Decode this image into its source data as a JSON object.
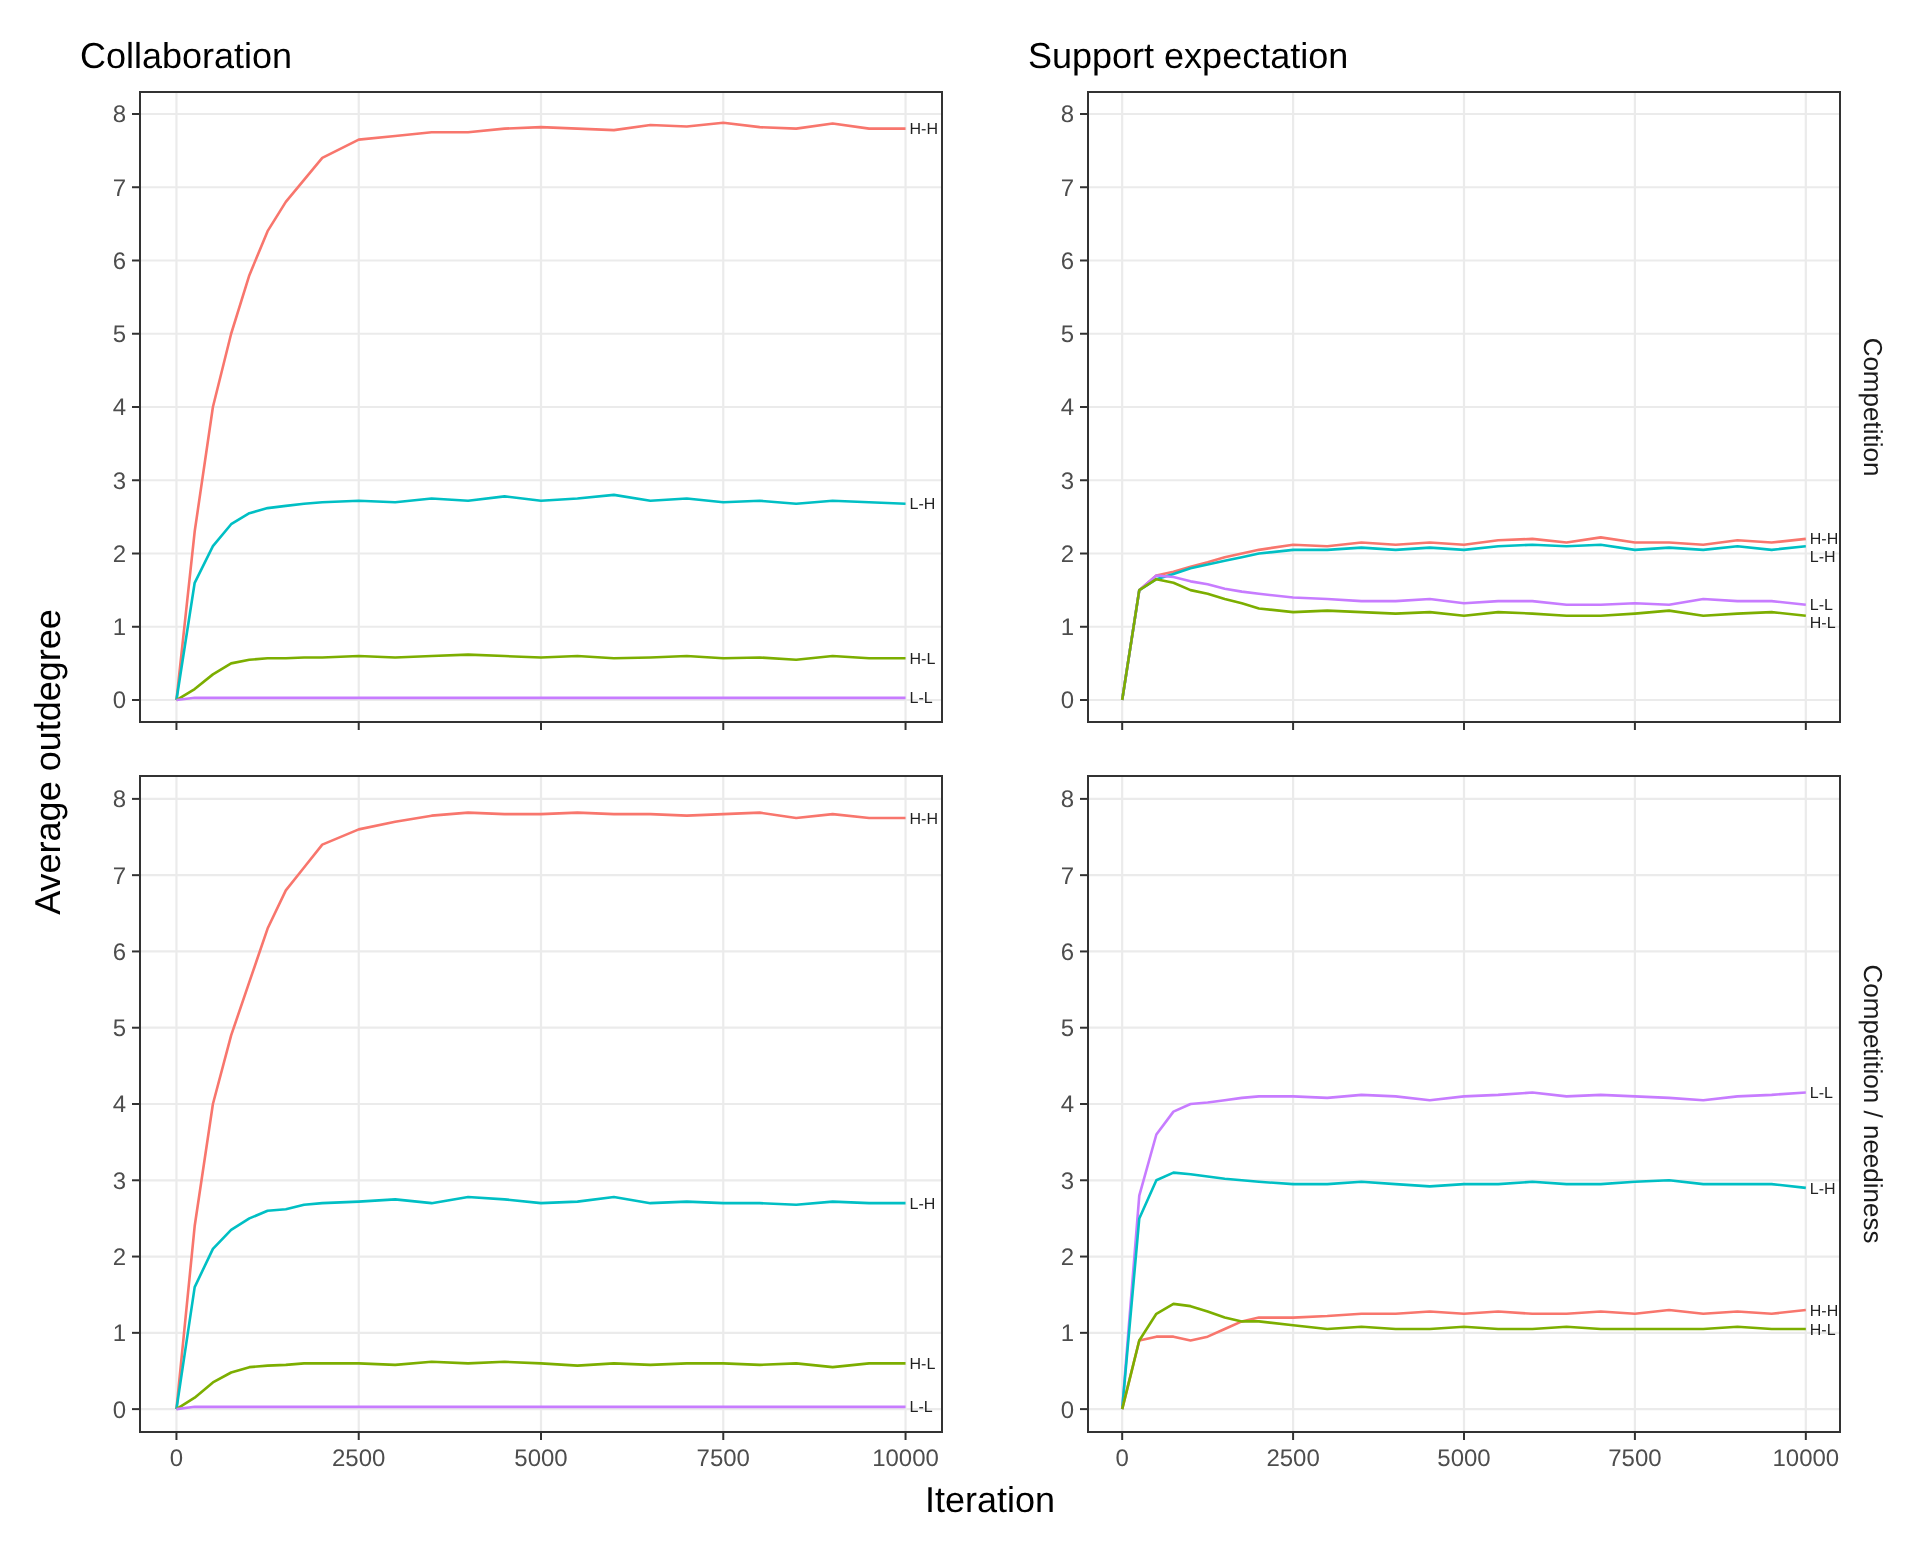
{
  "chart_data": [
    {
      "type": "line",
      "title": "Collaboration",
      "ylabel": "Average outdegree",
      "xlim": [
        -500,
        10500
      ],
      "xticks": [
        0,
        2500,
        5000,
        7500,
        10000
      ],
      "ylim": [
        -0.3,
        8.3
      ],
      "yticks": [
        0,
        1,
        2,
        3,
        4,
        5,
        6,
        7,
        8
      ],
      "grid": true,
      "legend": false,
      "tick_labels": "y",
      "x": [
        0,
        250,
        500,
        750,
        1000,
        1250,
        1500,
        1750,
        2000,
        2500,
        3000,
        3500,
        4000,
        4500,
        5000,
        5500,
        6000,
        6500,
        7000,
        7500,
        8000,
        8500,
        9000,
        9500,
        10000
      ],
      "series": [
        {
          "name": "H-H",
          "color": "#f8766d",
          "values": [
            0,
            2.3,
            4.0,
            5.0,
            5.8,
            6.4,
            6.8,
            7.1,
            7.4,
            7.65,
            7.7,
            7.75,
            7.75,
            7.8,
            7.82,
            7.8,
            7.78,
            7.85,
            7.83,
            7.88,
            7.82,
            7.8,
            7.87,
            7.8,
            7.8
          ]
        },
        {
          "name": "L-H",
          "color": "#00bfc4",
          "values": [
            0,
            1.6,
            2.1,
            2.4,
            2.55,
            2.62,
            2.65,
            2.68,
            2.7,
            2.72,
            2.7,
            2.75,
            2.72,
            2.78,
            2.72,
            2.75,
            2.8,
            2.72,
            2.75,
            2.7,
            2.72,
            2.68,
            2.72,
            2.7,
            2.68
          ]
        },
        {
          "name": "H-L",
          "color": "#7cae00",
          "values": [
            0,
            0.15,
            0.35,
            0.5,
            0.55,
            0.57,
            0.57,
            0.58,
            0.58,
            0.6,
            0.58,
            0.6,
            0.62,
            0.6,
            0.58,
            0.6,
            0.57,
            0.58,
            0.6,
            0.57,
            0.58,
            0.55,
            0.6,
            0.57,
            0.57
          ]
        },
        {
          "name": "L-L",
          "color": "#c77cff",
          "values": [
            0,
            0.03,
            0.03,
            0.03,
            0.03,
            0.03,
            0.03,
            0.03,
            0.03,
            0.03,
            0.03,
            0.03,
            0.03,
            0.03,
            0.03,
            0.03,
            0.03,
            0.03,
            0.03,
            0.03,
            0.03,
            0.03,
            0.03,
            0.03,
            0.03
          ]
        }
      ]
    },
    {
      "type": "line",
      "title": "Support expectation",
      "y2label": "Competition",
      "xlim": [
        -500,
        10500
      ],
      "xticks": [
        0,
        2500,
        5000,
        7500,
        10000
      ],
      "ylim": [
        -0.3,
        8.3
      ],
      "yticks": [
        0,
        1,
        2,
        3,
        4,
        5,
        6,
        7,
        8
      ],
      "grid": true,
      "legend": false,
      "tick_labels": "y",
      "x": [
        0,
        250,
        500,
        750,
        1000,
        1250,
        1500,
        1750,
        2000,
        2500,
        3000,
        3500,
        4000,
        4500,
        5000,
        5500,
        6000,
        6500,
        7000,
        7500,
        8000,
        8500,
        9000,
        9500,
        10000
      ],
      "series": [
        {
          "name": "H-H",
          "color": "#f8766d",
          "values": [
            0,
            1.5,
            1.7,
            1.75,
            1.82,
            1.88,
            1.95,
            2.0,
            2.05,
            2.12,
            2.1,
            2.15,
            2.12,
            2.15,
            2.12,
            2.18,
            2.2,
            2.15,
            2.22,
            2.15,
            2.15,
            2.12,
            2.18,
            2.15,
            2.2
          ]
        },
        {
          "name": "L-H",
          "color": "#00bfc4",
          "values": [
            0,
            1.5,
            1.65,
            1.72,
            1.8,
            1.85,
            1.9,
            1.95,
            2.0,
            2.05,
            2.05,
            2.08,
            2.05,
            2.08,
            2.05,
            2.1,
            2.12,
            2.1,
            2.12,
            2.05,
            2.08,
            2.05,
            2.1,
            2.05,
            2.1
          ]
        },
        {
          "name": "L-L",
          "color": "#c77cff",
          "values": [
            0,
            1.5,
            1.7,
            1.68,
            1.62,
            1.58,
            1.52,
            1.48,
            1.45,
            1.4,
            1.38,
            1.35,
            1.35,
            1.38,
            1.32,
            1.35,
            1.35,
            1.3,
            1.3,
            1.32,
            1.3,
            1.38,
            1.35,
            1.35,
            1.3
          ]
        },
        {
          "name": "H-L",
          "color": "#7cae00",
          "values": [
            0,
            1.5,
            1.65,
            1.6,
            1.5,
            1.45,
            1.38,
            1.32,
            1.25,
            1.2,
            1.22,
            1.2,
            1.18,
            1.2,
            1.15,
            1.2,
            1.18,
            1.15,
            1.15,
            1.18,
            1.22,
            1.15,
            1.18,
            1.2,
            1.15
          ]
        }
      ]
    },
    {
      "type": "line",
      "xlabel": "Iteration",
      "xlim": [
        -500,
        10500
      ],
      "xticks": [
        0,
        2500,
        5000,
        7500,
        10000
      ],
      "ylim": [
        -0.3,
        8.3
      ],
      "yticks": [
        0,
        1,
        2,
        3,
        4,
        5,
        6,
        7,
        8
      ],
      "grid": true,
      "legend": false,
      "x": [
        0,
        250,
        500,
        750,
        1000,
        1250,
        1500,
        1750,
        2000,
        2500,
        3000,
        3500,
        4000,
        4500,
        5000,
        5500,
        6000,
        6500,
        7000,
        7500,
        8000,
        8500,
        9000,
        9500,
        10000
      ],
      "series": [
        {
          "name": "H-H",
          "color": "#f8766d",
          "values": [
            0,
            2.4,
            4.0,
            4.9,
            5.6,
            6.3,
            6.8,
            7.1,
            7.4,
            7.6,
            7.7,
            7.78,
            7.82,
            7.8,
            7.8,
            7.82,
            7.8,
            7.8,
            7.78,
            7.8,
            7.82,
            7.75,
            7.8,
            7.75,
            7.75
          ]
        },
        {
          "name": "L-H",
          "color": "#00bfc4",
          "values": [
            0,
            1.6,
            2.1,
            2.35,
            2.5,
            2.6,
            2.62,
            2.68,
            2.7,
            2.72,
            2.75,
            2.7,
            2.78,
            2.75,
            2.7,
            2.72,
            2.78,
            2.7,
            2.72,
            2.7,
            2.7,
            2.68,
            2.72,
            2.7,
            2.7
          ]
        },
        {
          "name": "H-L",
          "color": "#7cae00",
          "values": [
            0,
            0.15,
            0.35,
            0.48,
            0.55,
            0.57,
            0.58,
            0.6,
            0.6,
            0.6,
            0.58,
            0.62,
            0.6,
            0.62,
            0.6,
            0.57,
            0.6,
            0.58,
            0.6,
            0.6,
            0.58,
            0.6,
            0.55,
            0.6,
            0.6
          ]
        },
        {
          "name": "L-L",
          "color": "#c77cff",
          "values": [
            0,
            0.03,
            0.03,
            0.03,
            0.03,
            0.03,
            0.03,
            0.03,
            0.03,
            0.03,
            0.03,
            0.03,
            0.03,
            0.03,
            0.03,
            0.03,
            0.03,
            0.03,
            0.03,
            0.03,
            0.03,
            0.03,
            0.03,
            0.03,
            0.03
          ]
        }
      ]
    },
    {
      "type": "line",
      "y2label": "Competition / neediness",
      "xlim": [
        -500,
        10500
      ],
      "xticks": [
        0,
        2500,
        5000,
        7500,
        10000
      ],
      "ylim": [
        -0.3,
        8.3
      ],
      "yticks": [
        0,
        1,
        2,
        3,
        4,
        5,
        6,
        7,
        8
      ],
      "grid": true,
      "legend": false,
      "x": [
        0,
        250,
        500,
        750,
        1000,
        1250,
        1500,
        1750,
        2000,
        2500,
        3000,
        3500,
        4000,
        4500,
        5000,
        5500,
        6000,
        6500,
        7000,
        7500,
        8000,
        8500,
        9000,
        9500,
        10000
      ],
      "series": [
        {
          "name": "L-L",
          "color": "#c77cff",
          "values": [
            0,
            2.8,
            3.6,
            3.9,
            4.0,
            4.02,
            4.05,
            4.08,
            4.1,
            4.1,
            4.08,
            4.12,
            4.1,
            4.05,
            4.1,
            4.12,
            4.15,
            4.1,
            4.12,
            4.1,
            4.08,
            4.05,
            4.1,
            4.12,
            4.15
          ]
        },
        {
          "name": "L-H",
          "color": "#00bfc4",
          "values": [
            0,
            2.5,
            3.0,
            3.1,
            3.08,
            3.05,
            3.02,
            3.0,
            2.98,
            2.95,
            2.95,
            2.98,
            2.95,
            2.92,
            2.95,
            2.95,
            2.98,
            2.95,
            2.95,
            2.98,
            3.0,
            2.95,
            2.95,
            2.95,
            2.9
          ]
        },
        {
          "name": "H-H",
          "color": "#f8766d",
          "values": [
            0,
            0.9,
            0.95,
            0.95,
            0.9,
            0.95,
            1.05,
            1.15,
            1.2,
            1.2,
            1.22,
            1.25,
            1.25,
            1.28,
            1.25,
            1.28,
            1.25,
            1.25,
            1.28,
            1.25,
            1.3,
            1.25,
            1.28,
            1.25,
            1.3
          ]
        },
        {
          "name": "H-L",
          "color": "#7cae00",
          "values": [
            0,
            0.9,
            1.25,
            1.38,
            1.35,
            1.28,
            1.2,
            1.15,
            1.15,
            1.1,
            1.05,
            1.08,
            1.05,
            1.05,
            1.08,
            1.05,
            1.05,
            1.08,
            1.05,
            1.05,
            1.05,
            1.05,
            1.08,
            1.05,
            1.05
          ]
        }
      ]
    }
  ]
}
